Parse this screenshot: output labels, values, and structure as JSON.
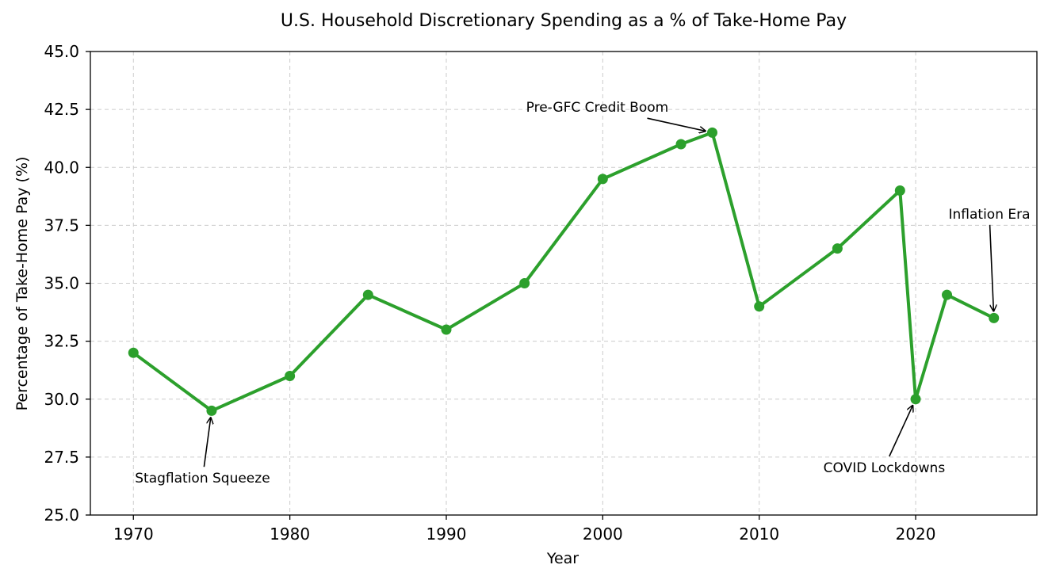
{
  "chart_data": {
    "type": "line",
    "title": "U.S. Household Discretionary Spending as a % of Take-Home Pay",
    "xlabel": "Year",
    "ylabel": "Percentage of Take-Home Pay (%)",
    "xlim": [
      1967.25,
      2027.75
    ],
    "ylim": [
      25.0,
      45.0
    ],
    "xticks": [
      1970,
      1980,
      1990,
      2000,
      2010,
      2020
    ],
    "yticks": [
      "25.0",
      "27.5",
      "30.0",
      "32.5",
      "35.0",
      "37.5",
      "40.0",
      "42.5",
      "45.0"
    ],
    "grid": true,
    "color": "#2ca02c",
    "series": [
      {
        "x": [
          1970,
          1975,
          1980,
          1985,
          1990,
          1995,
          2000,
          2005,
          2007,
          2010,
          2015,
          2019,
          2020,
          2022,
          2025
        ],
        "y": [
          32.0,
          29.5,
          31.0,
          34.5,
          33.0,
          35.0,
          39.5,
          41.0,
          41.5,
          34.0,
          36.5,
          39.0,
          30.0,
          34.5,
          33.5
        ]
      }
    ],
    "annotations": [
      {
        "text": "Stagflation Squeeze",
        "x": 1975,
        "y": 29.5,
        "text_x": 1970.1,
        "text_y": 26.6
      },
      {
        "text": "Pre-GFC Credit Boom",
        "x": 2007,
        "y": 41.5,
        "text_x": 1995.1,
        "text_y": 42.6
      },
      {
        "text": "COVID Lockdowns",
        "x": 2020,
        "y": 30.0,
        "text_x": 2014.1,
        "text_y": 27.05
      },
      {
        "text": "Inflation Era",
        "x": 2025,
        "y": 33.5,
        "text_x": 2022.1,
        "text_y": 38.0
      }
    ]
  }
}
